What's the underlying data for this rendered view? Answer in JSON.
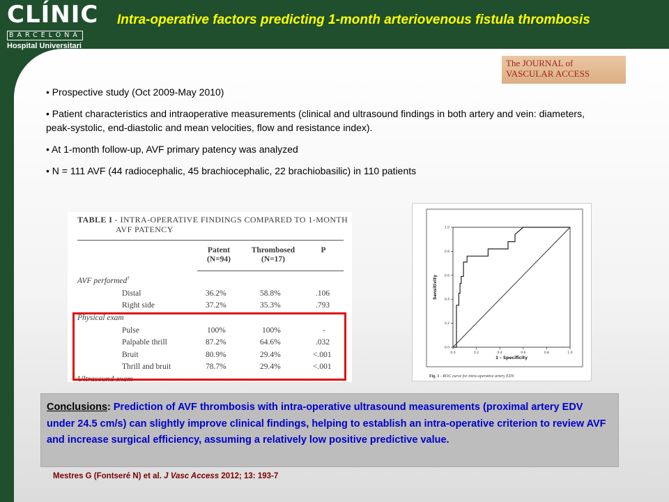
{
  "logo": {
    "name": "CLÍNIC",
    "city": "BARCELONA",
    "subtitle": "Hospital Universitari"
  },
  "title": "Intra-operative factors predicting 1-month arteriovenous fistula thrombosis",
  "journal": {
    "line1": "The JOURNAL of",
    "line2": "VASCULAR ACCESS"
  },
  "bullets": [
    "• Prospective study (Oct 2009-May 2010)",
    "• Patient characteristics and intraoperative measurements (clinical and ultrasound findings in both artery and vein: diameters, peak-systolic, end-diastolic and mean velocities, flow and resistance index).",
    "• At 1-month follow-up, AVF primary patency was analyzed",
    "• N = 111 AVF (44 radiocephalic, 45 brachiocephalic, 22 brachiobasilic) in 110 patients"
  ],
  "table": {
    "label": "TABLE I",
    "caption": " - INTRA-OPERATIVE FINDINGS COMPARED TO 1-MONTH",
    "caption2": "AVF PATENCY",
    "col_patent": "Patent",
    "col_patent_n": "(N=94)",
    "col_thrombosed": "Thrombosed",
    "col_thrombosed_n": "(N=17)",
    "col_p": "P",
    "section1": "AVF performed",
    "section1_sup": "†",
    "section2": "Physical exam",
    "section3": "Ultrasound exam",
    "rows": [
      {
        "label": "Distal",
        "patent": "36.2%",
        "thrombosed": "58.8%",
        "p": ".106"
      },
      {
        "label": "Right side",
        "patent": "37.2%",
        "thrombosed": "35.3%",
        "p": ".793"
      },
      {
        "label": "Pulse",
        "patent": "100%",
        "thrombosed": "100%",
        "p": "-"
      },
      {
        "label": "Palpable thrill",
        "patent": "87.2%",
        "thrombosed": "64.6%",
        "p": ".032"
      },
      {
        "label": "Bruit",
        "patent": "80.9%",
        "thrombosed": "29.4%",
        "p": "<.001"
      },
      {
        "label": "Thrill and bruit",
        "patent": "78.7%",
        "thrombosed": "29.4%",
        "p": "<.001"
      }
    ]
  },
  "chart_data": {
    "type": "line",
    "title": "",
    "caption_label": "Fig. 1 -",
    "caption_text": " ROC curve for intra-operative artery EDV.",
    "xlabel": "1 - Specificity",
    "ylabel": "Sensitivity",
    "xlim": [
      0,
      1
    ],
    "ylim": [
      0,
      1
    ],
    "xticks": [
      "0.0",
      "0.2",
      "0.4",
      "0.6",
      "0.8",
      "1.0"
    ],
    "yticks": [
      "0.0",
      "0.2",
      "0.4",
      "0.6",
      "0.8",
      "1.0"
    ],
    "series": [
      {
        "x": [
          0,
          0.03,
          0.03,
          0.05,
          0.05,
          0.06,
          0.06,
          0.07,
          0.07,
          0.09,
          0.09,
          0.12,
          0.12,
          0.15,
          0.15,
          0.3,
          0.3,
          0.4,
          0.4,
          0.47,
          0.47,
          0.53,
          0.53,
          0.6,
          1.0
        ],
        "y": [
          0,
          0,
          0.35,
          0.35,
          0.45,
          0.45,
          0.53,
          0.53,
          0.59,
          0.59,
          0.71,
          0.71,
          0.76,
          0.76,
          0.76,
          0.76,
          0.82,
          0.82,
          0.82,
          0.82,
          0.88,
          0.88,
          0.94,
          1.0,
          1.0
        ]
      },
      {
        "x": [
          0,
          1
        ],
        "y": [
          0,
          1
        ]
      }
    ]
  },
  "conclusions": {
    "label": "Conclusions",
    "colon": ":",
    "text": " Prediction of AVF thrombosis with intra-operative ultrasound measurements (proximal artery EDV under 24.5 cm/s) can slightly improve clinical findings, helping to establish an intra-operative criterion to review AVF and increase surgical efficiency, assuming a relatively low positive predictive value."
  },
  "citation": {
    "authors": "Mestres G (Fontseré N) et al. ",
    "journal": "J Vasc Access",
    "rest": " 2012; 13: 193-7"
  }
}
